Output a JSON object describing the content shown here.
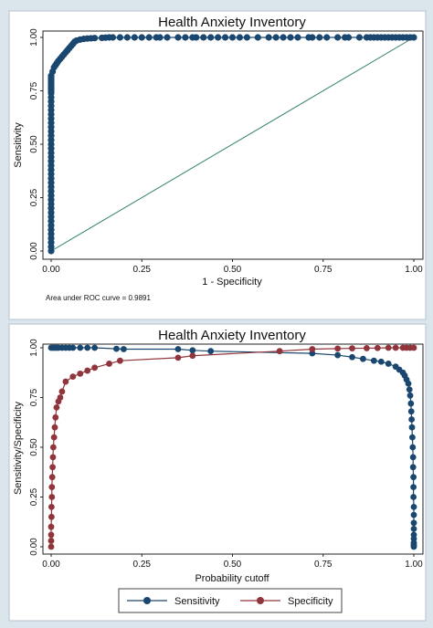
{
  "chart_data": [
    {
      "type": "line",
      "title": "Health Anxiety Inventory",
      "xlabel": "1 - Specificity",
      "ylabel": "Sensitivity",
      "xlim": [
        0,
        1
      ],
      "ylim": [
        0,
        1
      ],
      "xticks": [
        "0.00",
        "0.25",
        "0.50",
        "0.75",
        "1.00"
      ],
      "yticks": [
        "0.00",
        "0.25",
        "0.50",
        "0.75",
        "1.00"
      ],
      "grid": false,
      "legend": "none",
      "note": "Area under ROC curve = 0.9891",
      "colors": {
        "curve": "#1a476f",
        "reference": "#2e7d6b"
      },
      "series": [
        {
          "x": [
            0,
            0,
            0,
            0,
            0,
            0,
            0,
            0,
            0,
            0,
            0,
            0,
            0,
            0,
            0,
            0,
            0,
            0,
            0,
            0,
            0,
            0,
            0,
            0,
            0,
            0,
            0,
            0,
            0,
            0,
            0,
            0,
            0,
            0,
            0,
            0,
            0,
            0,
            0,
            0,
            0,
            0,
            0,
            0,
            0,
            0,
            0.004,
            0.008,
            0.012,
            0.016,
            0.02,
            0.025,
            0.03,
            0.035,
            0.04,
            0.045,
            0.05,
            0.055,
            0.06,
            0.065,
            0.07,
            0.08,
            0.09,
            0.1,
            0.11,
            0.12,
            0.14,
            0.15,
            0.16,
            0.17,
            0.19,
            0.21,
            0.23,
            0.25,
            0.27,
            0.29,
            0.3,
            0.32,
            0.35,
            0.37,
            0.39,
            0.4,
            0.42,
            0.44,
            0.46,
            0.48,
            0.5,
            0.52,
            0.54,
            0.57,
            0.6,
            0.62,
            0.64,
            0.66,
            0.68,
            0.71,
            0.72,
            0.74,
            0.76,
            0.79,
            0.81,
            0.82,
            0.85,
            0.87,
            0.88,
            0.89,
            0.9,
            0.91,
            0.92,
            0.93,
            0.94,
            0.95,
            0.96,
            0.97,
            0.98,
            0.99,
            1.0
          ],
          "y": [
            0,
            0.02,
            0.04,
            0.06,
            0.08,
            0.1,
            0.12,
            0.14,
            0.16,
            0.18,
            0.2,
            0.22,
            0.24,
            0.26,
            0.28,
            0.3,
            0.32,
            0.34,
            0.36,
            0.38,
            0.4,
            0.42,
            0.44,
            0.46,
            0.48,
            0.5,
            0.52,
            0.54,
            0.56,
            0.58,
            0.6,
            0.62,
            0.64,
            0.66,
            0.68,
            0.7,
            0.72,
            0.74,
            0.75,
            0.76,
            0.77,
            0.78,
            0.79,
            0.8,
            0.81,
            0.82,
            0.84,
            0.86,
            0.87,
            0.88,
            0.89,
            0.9,
            0.91,
            0.92,
            0.93,
            0.94,
            0.95,
            0.96,
            0.97,
            0.98,
            0.985,
            0.99,
            0.993,
            0.995,
            0.996,
            0.997,
            0.998,
            0.999,
            1,
            1,
            1,
            1,
            1,
            1,
            1,
            1,
            1,
            1,
            1,
            1,
            1,
            1,
            1,
            1,
            1,
            1,
            1,
            1,
            1,
            1,
            1,
            1,
            1,
            1,
            1,
            1,
            1,
            1,
            1,
            1,
            1,
            1,
            1,
            1,
            1,
            1,
            1,
            1,
            1,
            1,
            1,
            1,
            1,
            1,
            1,
            1,
            1
          ]
        }
      ]
    },
    {
      "type": "line",
      "title": "Health Anxiety Inventory",
      "xlabel": "Probability cutoff",
      "ylabel": "Sensitivity/Specificity",
      "xlim": [
        0,
        1
      ],
      "ylim": [
        0,
        1
      ],
      "xticks": [
        "0.00",
        "0.25",
        "0.50",
        "0.75",
        "1.00"
      ],
      "yticks": [
        "0.00",
        "0.25",
        "0.50",
        "0.75",
        "1.00"
      ],
      "grid": false,
      "legend": "bottom",
      "series": [
        {
          "name": "Sensitivity",
          "color": "#1a476f",
          "x": [
            0.0,
            0.005,
            0.01,
            0.015,
            0.02,
            0.03,
            0.04,
            0.05,
            0.06,
            0.08,
            0.1,
            0.12,
            0.18,
            0.2,
            0.35,
            0.39,
            0.44,
            0.72,
            0.79,
            0.83,
            0.86,
            0.89,
            0.91,
            0.93,
            0.95,
            0.96,
            0.97,
            0.975,
            0.98,
            0.985,
            0.988,
            0.99,
            0.992,
            0.993,
            0.994,
            0.995,
            0.996,
            0.997,
            0.998,
            0.998,
            0.999,
            0.999,
            0.999,
            1.0,
            1.0,
            1.0,
            1.0,
            1.0,
            1.0,
            1.0,
            1.0,
            1.0,
            1.0
          ],
          "y": [
            1,
            1,
            1,
            1,
            1,
            1,
            1,
            1,
            1,
            1,
            1,
            1,
            0.995,
            0.993,
            0.993,
            0.987,
            0.983,
            0.972,
            0.963,
            0.953,
            0.944,
            0.935,
            0.93,
            0.92,
            0.905,
            0.89,
            0.875,
            0.86,
            0.84,
            0.82,
            0.79,
            0.76,
            0.72,
            0.68,
            0.64,
            0.6,
            0.55,
            0.5,
            0.45,
            0.4,
            0.35,
            0.3,
            0.25,
            0.2,
            0.16,
            0.12,
            0.09,
            0.06,
            0.04,
            0.02,
            0.01,
            0.005,
            0
          ]
        },
        {
          "name": "Specificity",
          "color": "#90353b",
          "x": [
            0.0,
            0.0,
            0.0,
            0.0,
            0.001,
            0.001,
            0.002,
            0.002,
            0.003,
            0.004,
            0.005,
            0.006,
            0.008,
            0.01,
            0.012,
            0.015,
            0.02,
            0.025,
            0.03,
            0.04,
            0.06,
            0.08,
            0.1,
            0.12,
            0.16,
            0.19,
            0.35,
            0.39,
            0.63,
            0.72,
            0.79,
            0.83,
            0.87,
            0.9,
            0.93,
            0.95,
            0.97,
            0.98,
            0.99,
            1.0
          ],
          "y": [
            0,
            0.03,
            0.06,
            0.1,
            0.15,
            0.2,
            0.25,
            0.3,
            0.35,
            0.4,
            0.45,
            0.5,
            0.55,
            0.6,
            0.65,
            0.7,
            0.73,
            0.75,
            0.78,
            0.83,
            0.855,
            0.87,
            0.885,
            0.9,
            0.92,
            0.935,
            0.95,
            0.96,
            0.983,
            0.993,
            0.996,
            0.997,
            0.998,
            0.999,
            1,
            1,
            1,
            1,
            1,
            1
          ]
        }
      ]
    }
  ]
}
